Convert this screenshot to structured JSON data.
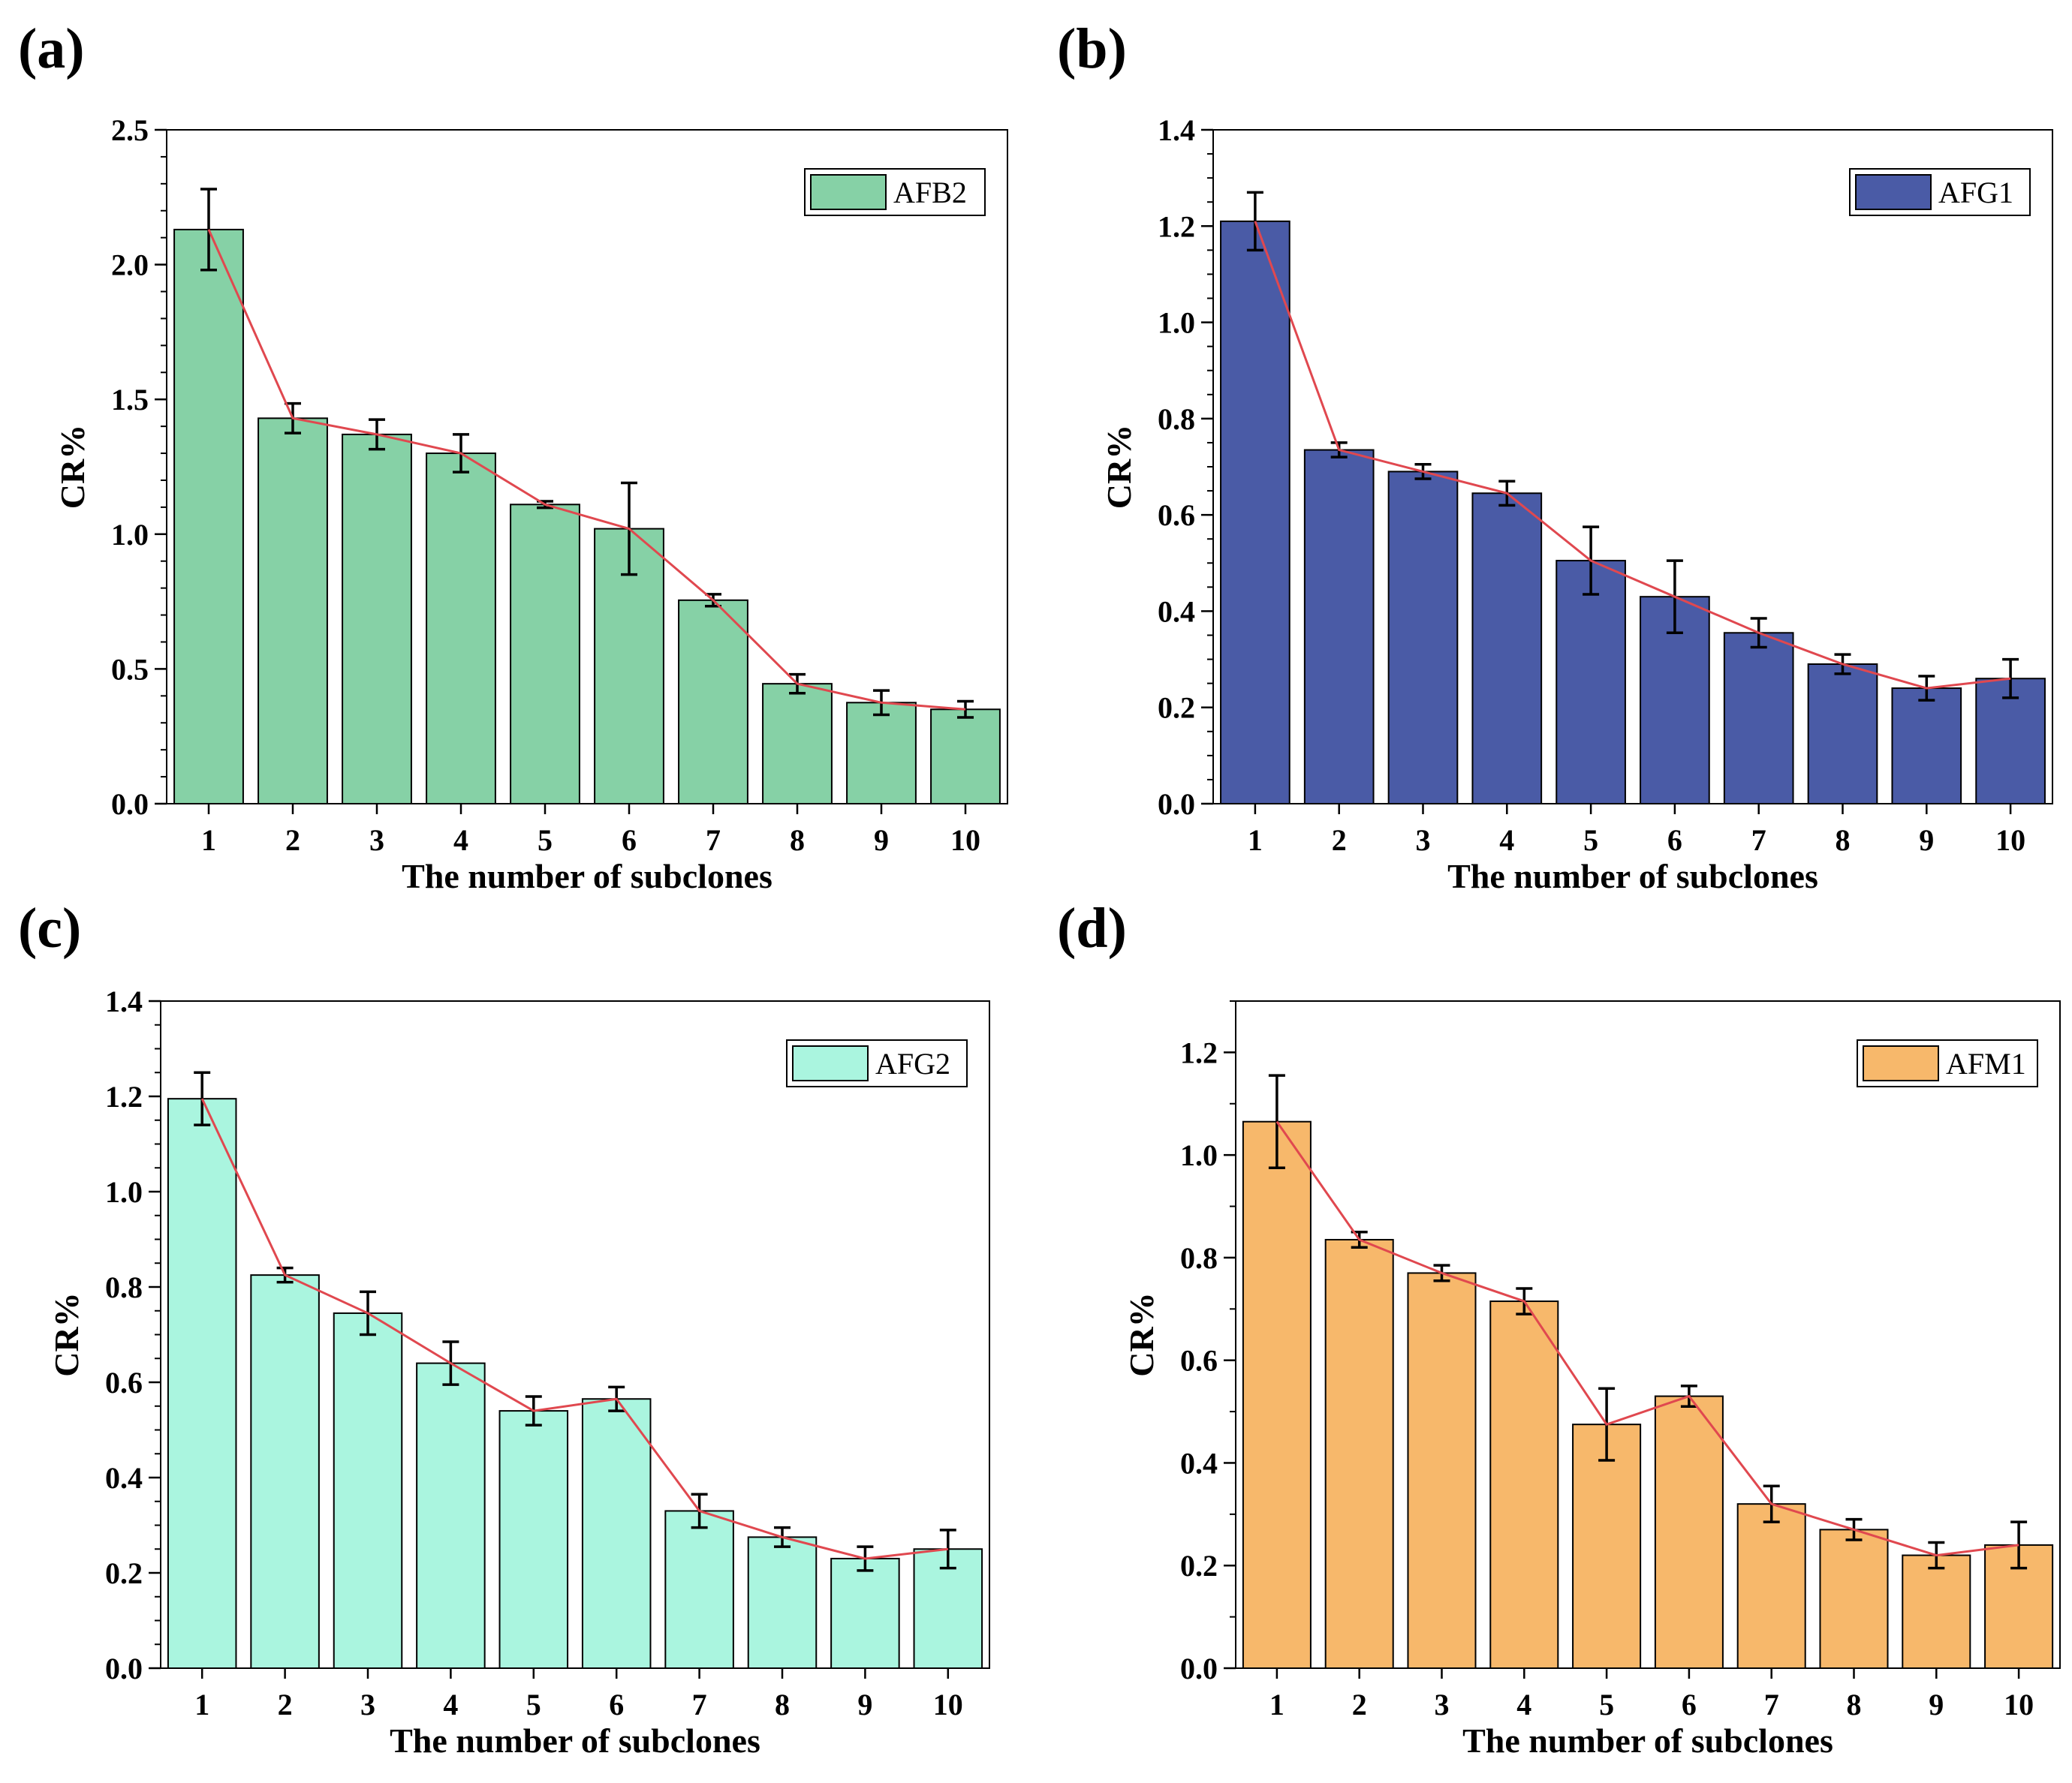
{
  "figure": {
    "panel_labels": [
      "(a)",
      "(b)",
      "(c)",
      "(d)"
    ],
    "line_color": "#e0484f"
  },
  "chart_data": [
    {
      "type": "bar",
      "panel": "(a)",
      "title": "",
      "xlabel": "The number of subclones",
      "ylabel": "CR%",
      "categories": [
        "1",
        "2",
        "3",
        "4",
        "5",
        "6",
        "7",
        "8",
        "9",
        "10"
      ],
      "series": [
        {
          "name": "AFB2",
          "color": "#86d1a6",
          "values": [
            2.13,
            1.43,
            1.37,
            1.3,
            1.11,
            1.02,
            0.755,
            0.445,
            0.375,
            0.35
          ],
          "errors": [
            0.15,
            0.055,
            0.055,
            0.07,
            0.012,
            0.17,
            0.022,
            0.035,
            0.045,
            0.03
          ],
          "trend_line": true
        }
      ],
      "ylim": [
        0,
        2.5
      ],
      "yticks": [
        "0.0",
        "0.5",
        "1.0",
        "1.5",
        "2.0",
        "2.5"
      ],
      "minor_tick_step": 0.1,
      "legend": "top-right"
    },
    {
      "type": "bar",
      "panel": "(b)",
      "title": "",
      "xlabel": "The number of subclones",
      "ylabel": "CR%",
      "categories": [
        "1",
        "2",
        "3",
        "4",
        "5",
        "6",
        "7",
        "8",
        "9",
        "10"
      ],
      "series": [
        {
          "name": "AFG1",
          "color": "#4a5ba6",
          "values": [
            1.21,
            0.735,
            0.69,
            0.645,
            0.505,
            0.43,
            0.355,
            0.29,
            0.24,
            0.26
          ],
          "errors": [
            0.06,
            0.015,
            0.015,
            0.025,
            0.07,
            0.075,
            0.03,
            0.02,
            0.025,
            0.04
          ],
          "trend_line": true
        }
      ],
      "ylim": [
        0,
        1.4
      ],
      "yticks": [
        "0.0",
        "0.2",
        "0.4",
        "0.6",
        "0.8",
        "1.0",
        "1.2",
        "1.4"
      ],
      "minor_tick_step": 0.05,
      "legend": "top-right"
    },
    {
      "type": "bar",
      "panel": "(c)",
      "title": "",
      "xlabel": "The number of subclones",
      "ylabel": "CR%",
      "categories": [
        "1",
        "2",
        "3",
        "4",
        "5",
        "6",
        "7",
        "8",
        "9",
        "10"
      ],
      "series": [
        {
          "name": "AFG2",
          "color": "#aaf5df",
          "values": [
            1.195,
            0.825,
            0.745,
            0.64,
            0.54,
            0.565,
            0.33,
            0.275,
            0.23,
            0.25
          ],
          "errors": [
            0.055,
            0.015,
            0.045,
            0.045,
            0.03,
            0.025,
            0.035,
            0.02,
            0.025,
            0.04
          ],
          "trend_line": true
        }
      ],
      "ylim": [
        0,
        1.4
      ],
      "yticks": [
        "0.0",
        "0.2",
        "0.4",
        "0.6",
        "0.8",
        "1.0",
        "1.2",
        "1.4"
      ],
      "minor_tick_step": 0.05,
      "legend": "top-right"
    },
    {
      "type": "bar",
      "panel": "(d)",
      "title": "",
      "xlabel": "The number of subclones",
      "ylabel": "CR%",
      "categories": [
        "1",
        "2",
        "3",
        "4",
        "5",
        "6",
        "7",
        "8",
        "9",
        "10"
      ],
      "series": [
        {
          "name": "AFM1",
          "color": "#f7b86b",
          "values": [
            1.065,
            0.835,
            0.77,
            0.715,
            0.475,
            0.53,
            0.32,
            0.27,
            0.22,
            0.24
          ],
          "errors": [
            0.09,
            0.015,
            0.015,
            0.025,
            0.07,
            0.02,
            0.035,
            0.02,
            0.025,
            0.045
          ],
          "trend_line": true
        }
      ],
      "ylim": [
        0,
        1.3
      ],
      "yticks": [
        "0.0",
        "0.2",
        "0.4",
        "0.6",
        "0.8",
        "1.0",
        "1.2"
      ],
      "minor_tick_step": 0.1,
      "legend": "top-right"
    }
  ]
}
